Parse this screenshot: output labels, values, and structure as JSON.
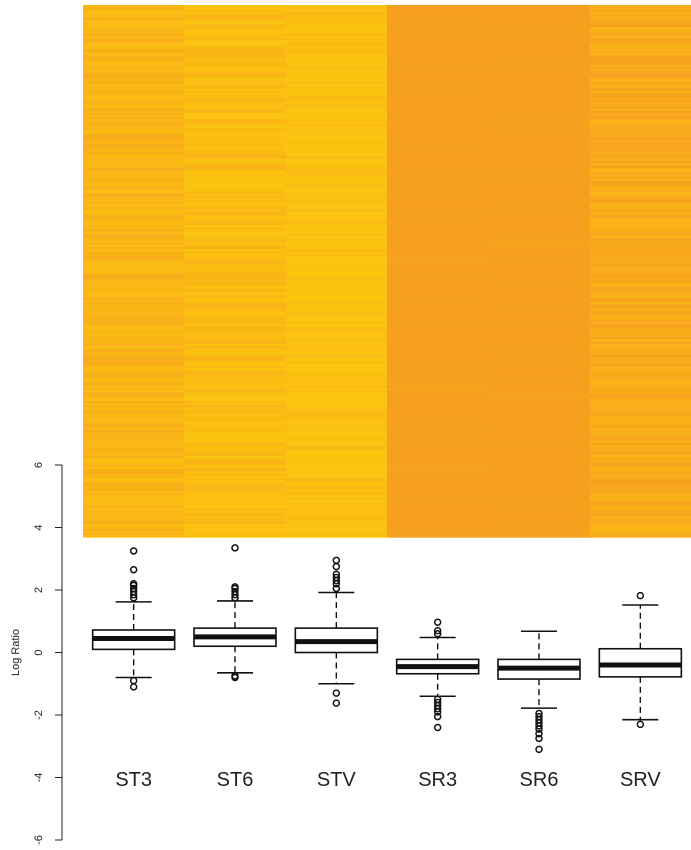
{
  "chart_data": [
    {
      "type": "heatmap",
      "columns": [
        "ST3",
        "ST6",
        "STV",
        "SR3",
        "SR6",
        "SRV"
      ],
      "color_scale": [
        "#f7a020",
        "#fbc40f"
      ],
      "column_base_colors": [
        "#f9b515",
        "#fbbd12",
        "#fbc310",
        "#f29a28",
        "#f29a27",
        "#f6ab1d"
      ]
    },
    {
      "type": "boxplot",
      "ylabel": "Log Ratio",
      "ylim": [
        -6,
        6
      ],
      "yticks": [
        -6,
        -4,
        -2,
        0,
        2,
        4,
        6
      ],
      "categories": [
        "ST3",
        "ST6",
        "STV",
        "SR3",
        "SR6",
        "SRV"
      ],
      "series": [
        {
          "q1": 0.1,
          "median": 0.45,
          "q3": 0.72,
          "whisker_low": -0.8,
          "whisker_high": 1.62,
          "outliers": [
            -0.9,
            -1.1,
            1.75,
            1.85,
            1.95,
            2.05,
            2.15,
            2.2,
            2.65,
            3.25
          ]
        },
        {
          "q1": 0.2,
          "median": 0.5,
          "q3": 0.78,
          "whisker_low": -0.65,
          "whisker_high": 1.65,
          "outliers": [
            -0.75,
            -0.8,
            1.75,
            1.85,
            1.95,
            2.05,
            2.1,
            3.35
          ]
        },
        {
          "q1": 0.0,
          "median": 0.35,
          "q3": 0.78,
          "whisker_low": -1.0,
          "whisker_high": 1.92,
          "outliers": [
            -1.3,
            -1.62,
            2.05,
            2.2,
            2.3,
            2.4,
            2.5,
            2.75,
            2.95
          ]
        },
        {
          "q1": -0.68,
          "median": -0.45,
          "q3": -0.22,
          "whisker_low": -1.4,
          "whisker_high": 0.48,
          "outliers": [
            -1.5,
            -1.6,
            -1.7,
            -1.8,
            -1.9,
            -2.05,
            -2.4,
            0.6,
            0.7,
            0.97
          ]
        },
        {
          "q1": -0.85,
          "median": -0.5,
          "q3": -0.22,
          "whisker_low": -1.78,
          "whisker_high": 0.68,
          "outliers": [
            -1.95,
            -2.05,
            -2.15,
            -2.25,
            -2.35,
            -2.45,
            -2.6,
            -2.75,
            -3.1
          ]
        },
        {
          "q1": -0.78,
          "median": -0.4,
          "q3": 0.12,
          "whisker_low": -2.15,
          "whisker_high": 1.52,
          "outliers": [
            -2.3,
            1.82
          ]
        }
      ]
    }
  ]
}
